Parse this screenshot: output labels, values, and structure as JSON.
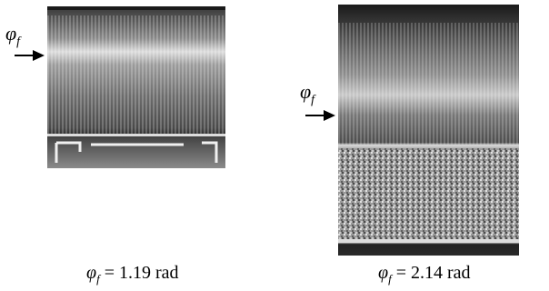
{
  "figure": {
    "label_symbol": "φ",
    "label_subscript": "f",
    "captions": [
      {
        "symbol": "φ",
        "subscript": "f",
        "text": " = 1.19 rad"
      },
      {
        "symbol": "φ",
        "subscript": "f",
        "text": " = 2.14 rad"
      }
    ]
  }
}
